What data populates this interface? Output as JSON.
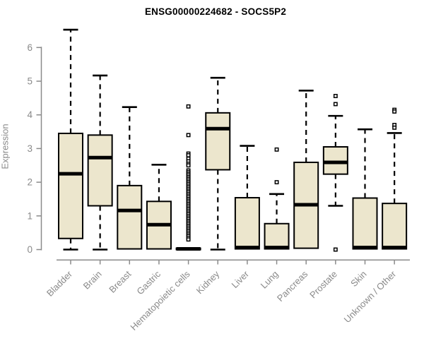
{
  "title": "ENSG00000224682 - SOCS5P2",
  "chart_data": {
    "type": "boxplot",
    "title": "ENSG00000224682 - SOCS5P2",
    "xlabel": "",
    "ylabel": "Expression",
    "ylim": [
      0,
      6.6
    ],
    "yticks": [
      0,
      1,
      2,
      3,
      4,
      5,
      6
    ],
    "grid": false,
    "legend": "none",
    "categories": [
      "Bladder",
      "Brain",
      "Breast",
      "Gastric",
      "Hematopoietic cells",
      "Kidney",
      "Liver",
      "Lung",
      "Pancreas",
      "Prostate",
      "Skin",
      "Unknown / Other"
    ],
    "series": [
      {
        "name": "Bladder",
        "whisker_low": 0,
        "q1": 0.33,
        "median": 2.25,
        "q3": 3.45,
        "whisker_high": 6.53,
        "outliers": []
      },
      {
        "name": "Brain",
        "whisker_low": 0,
        "q1": 1.3,
        "median": 2.73,
        "q3": 3.4,
        "whisker_high": 5.17,
        "outliers": []
      },
      {
        "name": "Breast",
        "whisker_low": 0,
        "q1": 0.02,
        "median": 1.16,
        "q3": 1.9,
        "whisker_high": 4.23,
        "outliers": []
      },
      {
        "name": "Gastric",
        "whisker_low": 0,
        "q1": 0.02,
        "median": 0.74,
        "q3": 1.43,
        "whisker_high": 2.52,
        "outliers": []
      },
      {
        "name": "Hematopoietic cells",
        "whisker_low": 0,
        "q1": 0.0,
        "median": 0.02,
        "q3": 0.04,
        "whisker_high": 0.04,
        "outliers": [
          4.25,
          3.4,
          2.85,
          2.8,
          2.7,
          2.62,
          2.55,
          2.5,
          2.35,
          2.3,
          2.25,
          2.2,
          2.15,
          2.1,
          2.05,
          2.0,
          1.95,
          1.9,
          1.85,
          1.8,
          1.75,
          1.7,
          1.65,
          1.6,
          1.55,
          1.5,
          1.45,
          1.4,
          1.35,
          1.3,
          1.25,
          1.2,
          1.15,
          1.1,
          1.05,
          1.0,
          0.95,
          0.9,
          0.85,
          0.8,
          0.75,
          0.7,
          0.65,
          0.6,
          0.55,
          0.5,
          0.45,
          0.4,
          0.35,
          0.3
        ]
      },
      {
        "name": "Kidney",
        "whisker_low": 0,
        "q1": 2.37,
        "median": 3.59,
        "q3": 4.06,
        "whisker_high": 5.1,
        "outliers": []
      },
      {
        "name": "Liver",
        "whisker_low": 0,
        "q1": 0.02,
        "median": 0.06,
        "q3": 1.54,
        "whisker_high": 3.08,
        "outliers": []
      },
      {
        "name": "Lung",
        "whisker_low": 0,
        "q1": 0.02,
        "median": 0.06,
        "q3": 0.77,
        "whisker_high": 1.65,
        "outliers": [
          2.97,
          2.0
        ]
      },
      {
        "name": "Pancreas",
        "whisker_low": 0,
        "q1": 0.04,
        "median": 1.33,
        "q3": 2.59,
        "whisker_high": 4.72,
        "outliers": []
      },
      {
        "name": "Prostate",
        "whisker_low": 1.3,
        "q1": 2.24,
        "median": 2.59,
        "q3": 3.05,
        "whisker_high": 3.97,
        "outliers": [
          4.56,
          4.32,
          0.0
        ]
      },
      {
        "name": "Skin",
        "whisker_low": 0,
        "q1": 0.02,
        "median": 0.06,
        "q3": 1.53,
        "whisker_high": 3.57,
        "outliers": []
      },
      {
        "name": "Unknown / Other",
        "whisker_low": 0,
        "q1": 0.02,
        "median": 0.06,
        "q3": 1.37,
        "whisker_high": 3.46,
        "outliers": [
          4.15,
          4.1,
          3.7,
          3.62
        ]
      }
    ],
    "colors": {
      "background": "#ffffff",
      "box_fill": "#ECE6CD",
      "box_border": "#000000",
      "median": "#000000",
      "whisker": "#000000",
      "outlier": "#000000",
      "axis": "#8a8a8a",
      "tick_text": "#8a8a8a",
      "title_text": "#000000"
    }
  }
}
